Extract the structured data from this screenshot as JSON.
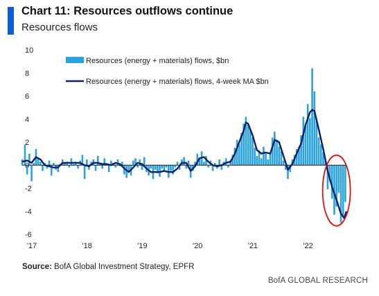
{
  "header": {
    "title": "Chart 11: Resources outflows continue",
    "subtitle": "Resources flows"
  },
  "footer": {
    "source_label": "Source:",
    "source_text": "BofA Global Investment Strategy, EPFR",
    "brand": "BofA GLOBAL RESEARCH"
  },
  "colors": {
    "bars": "#29a3e0",
    "ma_line": "#0c1f6b",
    "highlight_circle": "#e01010",
    "accent": "#0f5bd8"
  },
  "chart_data": {
    "type": "bar+line",
    "title": "Resources flows",
    "xlabel": "",
    "ylabel": "",
    "ylim": [
      -6,
      10
    ],
    "yticks": [
      10,
      8,
      6,
      4,
      2,
      0,
      -2,
      -4,
      -6
    ],
    "xticks": [
      "'17",
      "'18",
      "'19",
      "'20",
      "'21",
      "'22"
    ],
    "xlim_years": [
      2016.95,
      2022.82
    ],
    "legend_position": "top-center",
    "grid": false,
    "zero_line": true,
    "annotation": "red circle around mid-2022 outflows",
    "series": [
      {
        "name": "Resources (energy + materials) flows, $bn",
        "kind": "bar",
        "points": [
          [
            2016.95,
            0.5
          ],
          [
            2017.0,
            1.8
          ],
          [
            2017.04,
            -0.8
          ],
          [
            2017.08,
            1.0
          ],
          [
            2017.12,
            -1.4
          ],
          [
            2017.16,
            0.2
          ],
          [
            2017.2,
            1.4
          ],
          [
            2017.24,
            0.6
          ],
          [
            2017.28,
            0.3
          ],
          [
            2017.32,
            -0.5
          ],
          [
            2017.36,
            0.2
          ],
          [
            2017.4,
            -0.3
          ],
          [
            2017.44,
            0.4
          ],
          [
            2017.48,
            -0.9
          ],
          [
            2017.52,
            0.2
          ],
          [
            2017.56,
            -0.4
          ],
          [
            2017.6,
            -0.6
          ],
          [
            2017.64,
            0.1
          ],
          [
            2017.68,
            0.5
          ],
          [
            2017.72,
            0.2
          ],
          [
            2017.76,
            0.3
          ],
          [
            2017.8,
            -0.2
          ],
          [
            2017.84,
            0.6
          ],
          [
            2017.88,
            0.1
          ],
          [
            2017.92,
            0.3
          ],
          [
            2017.96,
            -0.3
          ],
          [
            2018.0,
            0.4
          ],
          [
            2018.04,
            0.9
          ],
          [
            2018.08,
            -1.2
          ],
          [
            2018.12,
            0.5
          ],
          [
            2018.16,
            -0.4
          ],
          [
            2018.2,
            0.3
          ],
          [
            2018.24,
            0.5
          ],
          [
            2018.28,
            -0.5
          ],
          [
            2018.32,
            0.8
          ],
          [
            2018.36,
            0.2
          ],
          [
            2018.4,
            -0.3
          ],
          [
            2018.44,
            0.6
          ],
          [
            2018.48,
            0.1
          ],
          [
            2018.52,
            -0.6
          ],
          [
            2018.56,
            0.4
          ],
          [
            2018.6,
            0.2
          ],
          [
            2018.64,
            -0.2
          ],
          [
            2018.68,
            0.5
          ],
          [
            2018.72,
            -0.1
          ],
          [
            2018.76,
            0.3
          ],
          [
            2018.8,
            -0.8
          ],
          [
            2018.84,
            -1.1
          ],
          [
            2018.88,
            -0.5
          ],
          [
            2018.92,
            -0.9
          ],
          [
            2018.96,
            0.4
          ],
          [
            2019.0,
            0.6
          ],
          [
            2019.04,
            -0.2
          ],
          [
            2019.08,
            0.5
          ],
          [
            2019.12,
            -0.4
          ],
          [
            2019.16,
            0.7
          ],
          [
            2019.2,
            -0.6
          ],
          [
            2019.24,
            -0.9
          ],
          [
            2019.28,
            -0.3
          ],
          [
            2019.32,
            -1.2
          ],
          [
            2019.36,
            -0.4
          ],
          [
            2019.4,
            -0.7
          ],
          [
            2019.44,
            -1.0
          ],
          [
            2019.48,
            -0.3
          ],
          [
            2019.52,
            -0.6
          ],
          [
            2019.56,
            -0.2
          ],
          [
            2019.6,
            -1.1
          ],
          [
            2019.64,
            -0.5
          ],
          [
            2019.68,
            -0.8
          ],
          [
            2019.72,
            -0.2
          ],
          [
            2019.76,
            0.3
          ],
          [
            2019.8,
            -0.4
          ],
          [
            2019.84,
            0.5
          ],
          [
            2019.88,
            0.7
          ],
          [
            2019.92,
            -0.3
          ],
          [
            2019.96,
            0.4
          ],
          [
            2020.0,
            -1.1
          ],
          [
            2020.04,
            -0.5
          ],
          [
            2020.08,
            0.3
          ],
          [
            2020.12,
            1.0
          ],
          [
            2020.16,
            0.6
          ],
          [
            2020.2,
            1.2
          ],
          [
            2020.24,
            0.3
          ],
          [
            2020.28,
            0.8
          ],
          [
            2020.32,
            -0.2
          ],
          [
            2020.36,
            0.4
          ],
          [
            2020.4,
            -0.5
          ],
          [
            2020.44,
            0.2
          ],
          [
            2020.48,
            -0.3
          ],
          [
            2020.52,
            0.5
          ],
          [
            2020.56,
            -0.4
          ],
          [
            2020.6,
            0.3
          ],
          [
            2020.64,
            0.6
          ],
          [
            2020.68,
            -0.2
          ],
          [
            2020.72,
            0.4
          ],
          [
            2020.76,
            0.9
          ],
          [
            2020.8,
            1.5
          ],
          [
            2020.84,
            2.2
          ],
          [
            2020.88,
            1.8
          ],
          [
            2020.92,
            2.8
          ],
          [
            2020.96,
            3.6
          ],
          [
            2021.0,
            4.2
          ],
          [
            2021.04,
            3.5
          ],
          [
            2021.08,
            3.1
          ],
          [
            2021.12,
            2.4
          ],
          [
            2021.16,
            1.5
          ],
          [
            2021.2,
            0.8
          ],
          [
            2021.24,
            1.3
          ],
          [
            2021.28,
            0.6
          ],
          [
            2021.32,
            1.6
          ],
          [
            2021.36,
            1.0
          ],
          [
            2021.4,
            0.5
          ],
          [
            2021.44,
            1.1
          ],
          [
            2021.48,
            2.4
          ],
          [
            2021.52,
            2.9
          ],
          [
            2021.56,
            2.2
          ],
          [
            2021.6,
            1.6
          ],
          [
            2021.64,
            1.2
          ],
          [
            2021.68,
            0.4
          ],
          [
            2021.72,
            -0.4
          ],
          [
            2021.76,
            -1.2
          ],
          [
            2021.8,
            -0.6
          ],
          [
            2021.84,
            0.5
          ],
          [
            2021.88,
            0.9
          ],
          [
            2021.92,
            1.4
          ],
          [
            2021.96,
            1.6
          ],
          [
            2022.0,
            2.6
          ],
          [
            2022.04,
            4.2
          ],
          [
            2022.08,
            3.4
          ],
          [
            2022.12,
            5.3
          ],
          [
            2022.16,
            4.1
          ],
          [
            2022.2,
            8.4
          ],
          [
            2022.24,
            6.4
          ],
          [
            2022.28,
            3.9
          ],
          [
            2022.32,
            2.4
          ],
          [
            2022.36,
            1.8
          ],
          [
            2022.4,
            1.1
          ],
          [
            2022.44,
            0.4
          ],
          [
            2022.48,
            -2.1
          ],
          [
            2022.52,
            -1.4
          ],
          [
            2022.56,
            -2.9
          ],
          [
            2022.6,
            -4.3
          ],
          [
            2022.64,
            -3.6
          ],
          [
            2022.68,
            -2.4
          ],
          [
            2022.72,
            -5.0
          ],
          [
            2022.76,
            -4.5
          ],
          [
            2022.8,
            -3.2
          ]
        ]
      },
      {
        "name": "Resources (energy + materials) flows, 4-week MA $bn",
        "kind": "line",
        "points": [
          [
            2016.95,
            0.3
          ],
          [
            2017.04,
            0.4
          ],
          [
            2017.12,
            0.2
          ],
          [
            2017.2,
            0.7
          ],
          [
            2017.28,
            0.5
          ],
          [
            2017.36,
            0.0
          ],
          [
            2017.44,
            -0.1
          ],
          [
            2017.52,
            -0.2
          ],
          [
            2017.6,
            -0.2
          ],
          [
            2017.68,
            0.2
          ],
          [
            2017.76,
            0.2
          ],
          [
            2017.84,
            0.2
          ],
          [
            2017.92,
            0.2
          ],
          [
            2018.0,
            0.2
          ],
          [
            2018.08,
            0.0
          ],
          [
            2018.16,
            -0.1
          ],
          [
            2018.24,
            0.2
          ],
          [
            2018.32,
            0.2
          ],
          [
            2018.4,
            0.1
          ],
          [
            2018.48,
            0.1
          ],
          [
            2018.56,
            0.0
          ],
          [
            2018.64,
            0.2
          ],
          [
            2018.72,
            0.1
          ],
          [
            2018.8,
            -0.3
          ],
          [
            2018.88,
            -0.6
          ],
          [
            2018.96,
            -0.2
          ],
          [
            2019.04,
            0.2
          ],
          [
            2019.12,
            0.1
          ],
          [
            2019.2,
            -0.3
          ],
          [
            2019.28,
            -0.6
          ],
          [
            2019.36,
            -0.6
          ],
          [
            2019.44,
            -0.6
          ],
          [
            2019.52,
            -0.5
          ],
          [
            2019.6,
            -0.6
          ],
          [
            2019.68,
            -0.6
          ],
          [
            2019.76,
            -0.3
          ],
          [
            2019.84,
            0.2
          ],
          [
            2019.92,
            0.2
          ],
          [
            2020.0,
            -0.5
          ],
          [
            2020.08,
            -0.1
          ],
          [
            2020.16,
            0.6
          ],
          [
            2020.24,
            0.7
          ],
          [
            2020.32,
            0.3
          ],
          [
            2020.4,
            0.0
          ],
          [
            2020.48,
            -0.1
          ],
          [
            2020.56,
            0.0
          ],
          [
            2020.64,
            0.2
          ],
          [
            2020.72,
            0.3
          ],
          [
            2020.8,
            1.0
          ],
          [
            2020.88,
            2.0
          ],
          [
            2020.96,
            3.0
          ],
          [
            2021.0,
            3.7
          ],
          [
            2021.04,
            3.6
          ],
          [
            2021.12,
            2.6
          ],
          [
            2021.2,
            1.3
          ],
          [
            2021.28,
            1.0
          ],
          [
            2021.36,
            1.1
          ],
          [
            2021.44,
            1.0
          ],
          [
            2021.52,
            2.2
          ],
          [
            2021.6,
            2.0
          ],
          [
            2021.68,
            0.8
          ],
          [
            2021.76,
            -0.4
          ],
          [
            2021.84,
            0.1
          ],
          [
            2021.92,
            1.0
          ],
          [
            2022.0,
            1.9
          ],
          [
            2022.08,
            3.5
          ],
          [
            2022.16,
            4.6
          ],
          [
            2022.2,
            4.8
          ],
          [
            2022.24,
            4.7
          ],
          [
            2022.32,
            3.1
          ],
          [
            2022.4,
            1.4
          ],
          [
            2022.48,
            -0.5
          ],
          [
            2022.56,
            -1.9
          ],
          [
            2022.64,
            -3.0
          ],
          [
            2022.72,
            -4.2
          ],
          [
            2022.78,
            -4.6
          ],
          [
            2022.82,
            -4.0
          ]
        ]
      }
    ]
  }
}
